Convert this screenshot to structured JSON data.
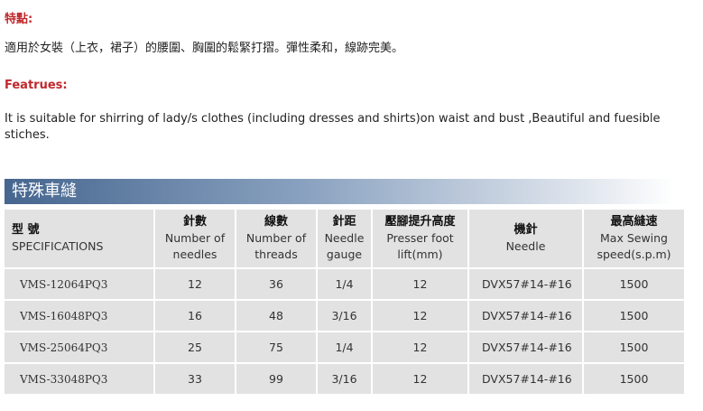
{
  "features_zh": {
    "heading": "特點:",
    "text": "適用於女裝（上衣，裙子）的腰圍、胸圍的鬆緊打摺。彈性柔和，線跡完美。"
  },
  "features_en": {
    "heading": "Featrues:",
    "text": "It is suitable for shirring of lady/s clothes (including dresses and shirts)on waist and bust ,Beautiful and fuesible stiches."
  },
  "section_title": "特殊車縫",
  "table": {
    "headers": [
      {
        "zh": "型  號",
        "en": "SPECIFICATIONS"
      },
      {
        "zh": "針數",
        "en": "Number of needles"
      },
      {
        "zh": "線數",
        "en": "Number of threads"
      },
      {
        "zh": "針距",
        "en": "Needle gauge"
      },
      {
        "zh": "壓腳提升高度",
        "en": "Presser foot lift(mm)"
      },
      {
        "zh": "機針",
        "en": "Needle"
      },
      {
        "zh": "最高縫速",
        "en": "Max Sewing speed(s.p.m)"
      }
    ],
    "rows": [
      [
        "VMS-12064PQ3",
        "12",
        "36",
        "1/4",
        "12",
        "DVX57#14-#16",
        "1500"
      ],
      [
        "VMS-16048PQ3",
        "16",
        "48",
        "3/16",
        "12",
        "DVX57#14-#16",
        "1500"
      ],
      [
        "VMS-25064PQ3",
        "25",
        "75",
        "1/4",
        "12",
        "DVX57#14-#16",
        "1500"
      ],
      [
        "VMS-33048PQ3",
        "33",
        "99",
        "3/16",
        "12",
        "DVX57#14-#16",
        "1500"
      ]
    ]
  },
  "colors": {
    "heading": "#c0282c",
    "banner": "#46668f",
    "cell": "#e2e2e2"
  }
}
